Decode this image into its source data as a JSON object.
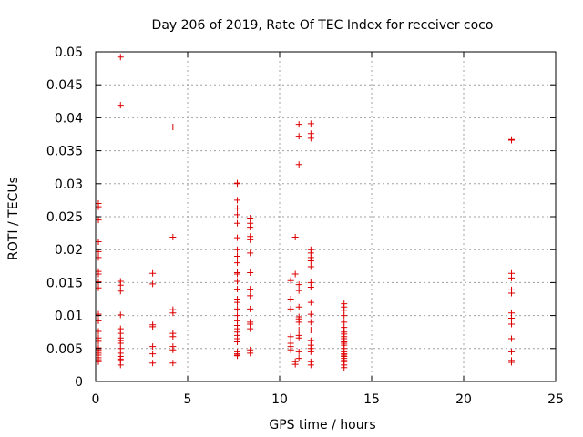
{
  "chart_data": {
    "type": "scatter",
    "title": "Day 206 of 2019, Rate Of TEC Index for receiver coco",
    "xlabel": "GPS time / hours",
    "ylabel": "ROTI / TECUs",
    "xlim": [
      0,
      25
    ],
    "ylim": [
      0,
      0.05
    ],
    "grid": true,
    "marker": "+",
    "xticks": [
      0,
      5,
      10,
      15,
      20,
      25
    ],
    "xtick_labels": [
      "0",
      "5",
      "10",
      "15",
      "20",
      "25"
    ],
    "yticks": [
      0,
      0.005,
      0.01,
      0.015,
      0.02,
      0.025,
      0.03,
      0.035,
      0.04,
      0.045,
      0.05
    ],
    "ytick_labels": [
      "0",
      "0.005",
      "0.01",
      "0.015",
      "0.02",
      "0.025",
      "0.03",
      "0.035",
      "0.04",
      "0.045",
      "0.05"
    ],
    "colors": {
      "series": "#dd0000",
      "grid": "#a0a0a0",
      "axis": "#000000"
    },
    "series": [
      {
        "name": "ROTI",
        "x": [
          0.15,
          0.15,
          0.15,
          0.15,
          0.15,
          0.15,
          0.15,
          0.15,
          0.15,
          0.15,
          0.15,
          0.15,
          0.15,
          0.15,
          0.15,
          0.15,
          0.15,
          0.15,
          0.15,
          0.15,
          0.15,
          0.15,
          0.15,
          0.15,
          1.35,
          1.35,
          1.35,
          1.35,
          1.35,
          1.35,
          1.35,
          1.35,
          1.35,
          1.35,
          1.35,
          1.35,
          1.35,
          1.35,
          1.35,
          1.35,
          1.35,
          3.1,
          3.1,
          3.1,
          3.1,
          3.1,
          3.1,
          3.1,
          4.2,
          4.2,
          4.2,
          4.2,
          4.2,
          4.2,
          4.2,
          4.2,
          4.2,
          7.7,
          7.7,
          7.7,
          7.7,
          7.7,
          7.7,
          7.7,
          7.7,
          7.7,
          7.7,
          7.7,
          7.7,
          7.7,
          7.7,
          7.7,
          7.7,
          7.7,
          7.7,
          7.7,
          7.7,
          7.7,
          7.7,
          7.7,
          7.7,
          7.7,
          7.7,
          7.7,
          7.7,
          7.7,
          8.4,
          8.4,
          8.4,
          8.4,
          8.4,
          8.4,
          8.4,
          8.4,
          8.4,
          8.4,
          8.4,
          8.4,
          8.4,
          8.4,
          8.4,
          10.6,
          10.6,
          10.6,
          10.6,
          10.6,
          10.6,
          10.6,
          10.85,
          10.85,
          10.85,
          10.85,
          11.05,
          11.05,
          11.05,
          11.05,
          11.05,
          11.05,
          11.05,
          11.05,
          11.05,
          11.05,
          11.05,
          11.05,
          11.05,
          11.05,
          11.7,
          11.7,
          11.7,
          11.7,
          11.7,
          11.7,
          11.7,
          11.7,
          11.7,
          11.7,
          11.7,
          11.7,
          11.7,
          11.7,
          11.7,
          11.7,
          11.7,
          11.7,
          11.7,
          11.7,
          13.5,
          13.5,
          13.5,
          13.5,
          13.5,
          13.5,
          13.5,
          13.5,
          13.5,
          13.5,
          13.5,
          13.5,
          13.5,
          13.5,
          13.5,
          13.5,
          13.5,
          13.5,
          13.5,
          13.5,
          13.5,
          13.5,
          13.5,
          13.5,
          22.6,
          22.6,
          22.6,
          22.6,
          22.6,
          22.6,
          22.6,
          22.6,
          22.6,
          22.6,
          22.6,
          22.6,
          22.6
        ],
        "y": [
          0.027,
          0.0265,
          0.0245,
          0.0212,
          0.0197,
          0.0188,
          0.0167,
          0.0163,
          0.0151,
          0.0142,
          0.0102,
          0.0092,
          0.0076,
          0.0066,
          0.0061,
          0.0051,
          0.0048,
          0.0046,
          0.0043,
          0.004,
          0.0036,
          0.0033,
          0.0031,
          0.003,
          0.0492,
          0.0419,
          0.0152,
          0.0146,
          0.0137,
          0.0101,
          0.008,
          0.0073,
          0.0066,
          0.0062,
          0.0058,
          0.005,
          0.0043,
          0.0038,
          0.0034,
          0.0032,
          0.0025,
          0.0164,
          0.0148,
          0.0086,
          0.0083,
          0.0053,
          0.0042,
          0.0028,
          0.0386,
          0.0219,
          0.0109,
          0.0104,
          0.0073,
          0.0068,
          0.0053,
          0.0048,
          0.0028,
          0.0301,
          0.03,
          0.0275,
          0.0263,
          0.0253,
          0.024,
          0.0218,
          0.02,
          0.019,
          0.018,
          0.0165,
          0.0163,
          0.0152,
          0.014,
          0.0125,
          0.012,
          0.011,
          0.01,
          0.0092,
          0.0085,
          0.008,
          0.0075,
          0.007,
          0.0065,
          0.006,
          0.0045,
          0.0042,
          0.004,
          0.0039,
          0.0248,
          0.024,
          0.0234,
          0.022,
          0.0215,
          0.0195,
          0.0165,
          0.014,
          0.013,
          0.011,
          0.009,
          0.0087,
          0.008,
          0.0048,
          0.0043,
          0.0153,
          0.0125,
          0.011,
          0.0068,
          0.0058,
          0.0053,
          0.0048,
          0.0219,
          0.0163,
          0.003,
          0.0026,
          0.039,
          0.0372,
          0.0329,
          0.0147,
          0.0138,
          0.0113,
          0.0098,
          0.0095,
          0.009,
          0.0078,
          0.007,
          0.0066,
          0.0045,
          0.0035,
          0.0391,
          0.0376,
          0.0369,
          0.02,
          0.0195,
          0.0188,
          0.0183,
          0.0174,
          0.015,
          0.0143,
          0.012,
          0.0102,
          0.009,
          0.0078,
          0.0062,
          0.0055,
          0.005,
          0.0045,
          0.003,
          0.0025,
          0.0118,
          0.0113,
          0.0108,
          0.01,
          0.009,
          0.0082,
          0.0078,
          0.0075,
          0.0072,
          0.0068,
          0.0065,
          0.006,
          0.0058,
          0.0055,
          0.005,
          0.0045,
          0.0042,
          0.004,
          0.0038,
          0.0035,
          0.0032,
          0.003,
          0.0025,
          0.0021,
          0.0367,
          0.0366,
          0.0164,
          0.0157,
          0.0139,
          0.0134,
          0.0104,
          0.0096,
          0.0087,
          0.0065,
          0.0045,
          0.0032,
          0.0029
        ]
      }
    ]
  }
}
